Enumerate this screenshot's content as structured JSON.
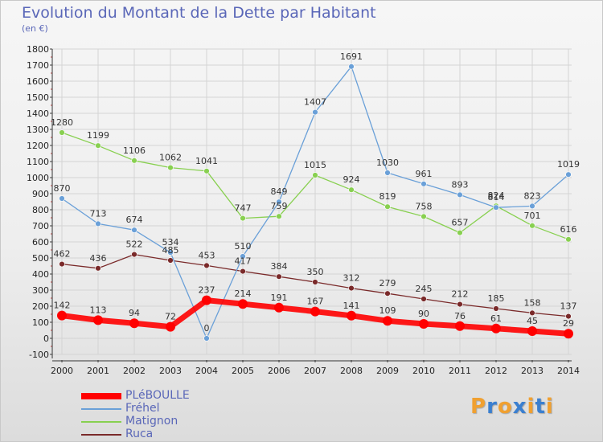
{
  "title": "Evolution du Montant de la Dette par Habitant",
  "subtitle": "(en €)",
  "logo": {
    "text": "Proxiti",
    "colors": [
      "#f0a030",
      "#3a7fd0",
      "#f0a030",
      "#3a7fd0",
      "#f0a030",
      "#3a7fd0",
      "#f0a030"
    ]
  },
  "chart_data": {
    "type": "line",
    "title": "Evolution du Montant de la Dette par Habitant",
    "ylabel": "(en €)",
    "xlabel": "",
    "ylim": [
      -100,
      1800
    ],
    "yticks": [
      -100,
      0,
      100,
      200,
      300,
      400,
      500,
      600,
      700,
      800,
      900,
      1000,
      1100,
      1200,
      1300,
      1400,
      1500,
      1600,
      1700,
      1800
    ],
    "grid": true,
    "legend": "bottom-left",
    "x": [
      "2000",
      "2001",
      "2002",
      "2003",
      "2004",
      "2005",
      "2006",
      "2007",
      "2008",
      "2009",
      "2010",
      "2011",
      "2012",
      "2013",
      "2014"
    ],
    "series": [
      {
        "name": "PLéBOULLE",
        "color": "#ff0000",
        "values": [
          142,
          113,
          94,
          72,
          237,
          214,
          191,
          167,
          141,
          109,
          90,
          76,
          61,
          45,
          29
        ]
      },
      {
        "name": "Fréhel",
        "color": "#6aa0d8",
        "values": [
          870,
          713,
          674,
          534,
          0,
          510,
          849,
          1407,
          1691,
          1030,
          961,
          893,
          814,
          823,
          1019
        ]
      },
      {
        "name": "Matignon",
        "color": "#88d050",
        "values": [
          1280,
          1199,
          1106,
          1062,
          1041,
          747,
          759,
          1015,
          924,
          819,
          758,
          657,
          824,
          701,
          616
        ]
      },
      {
        "name": "Ruca",
        "color": "#7a2a2a",
        "values": [
          462,
          436,
          522,
          485,
          453,
          417,
          384,
          350,
          312,
          279,
          245,
          212,
          185,
          158,
          137
        ]
      }
    ]
  }
}
